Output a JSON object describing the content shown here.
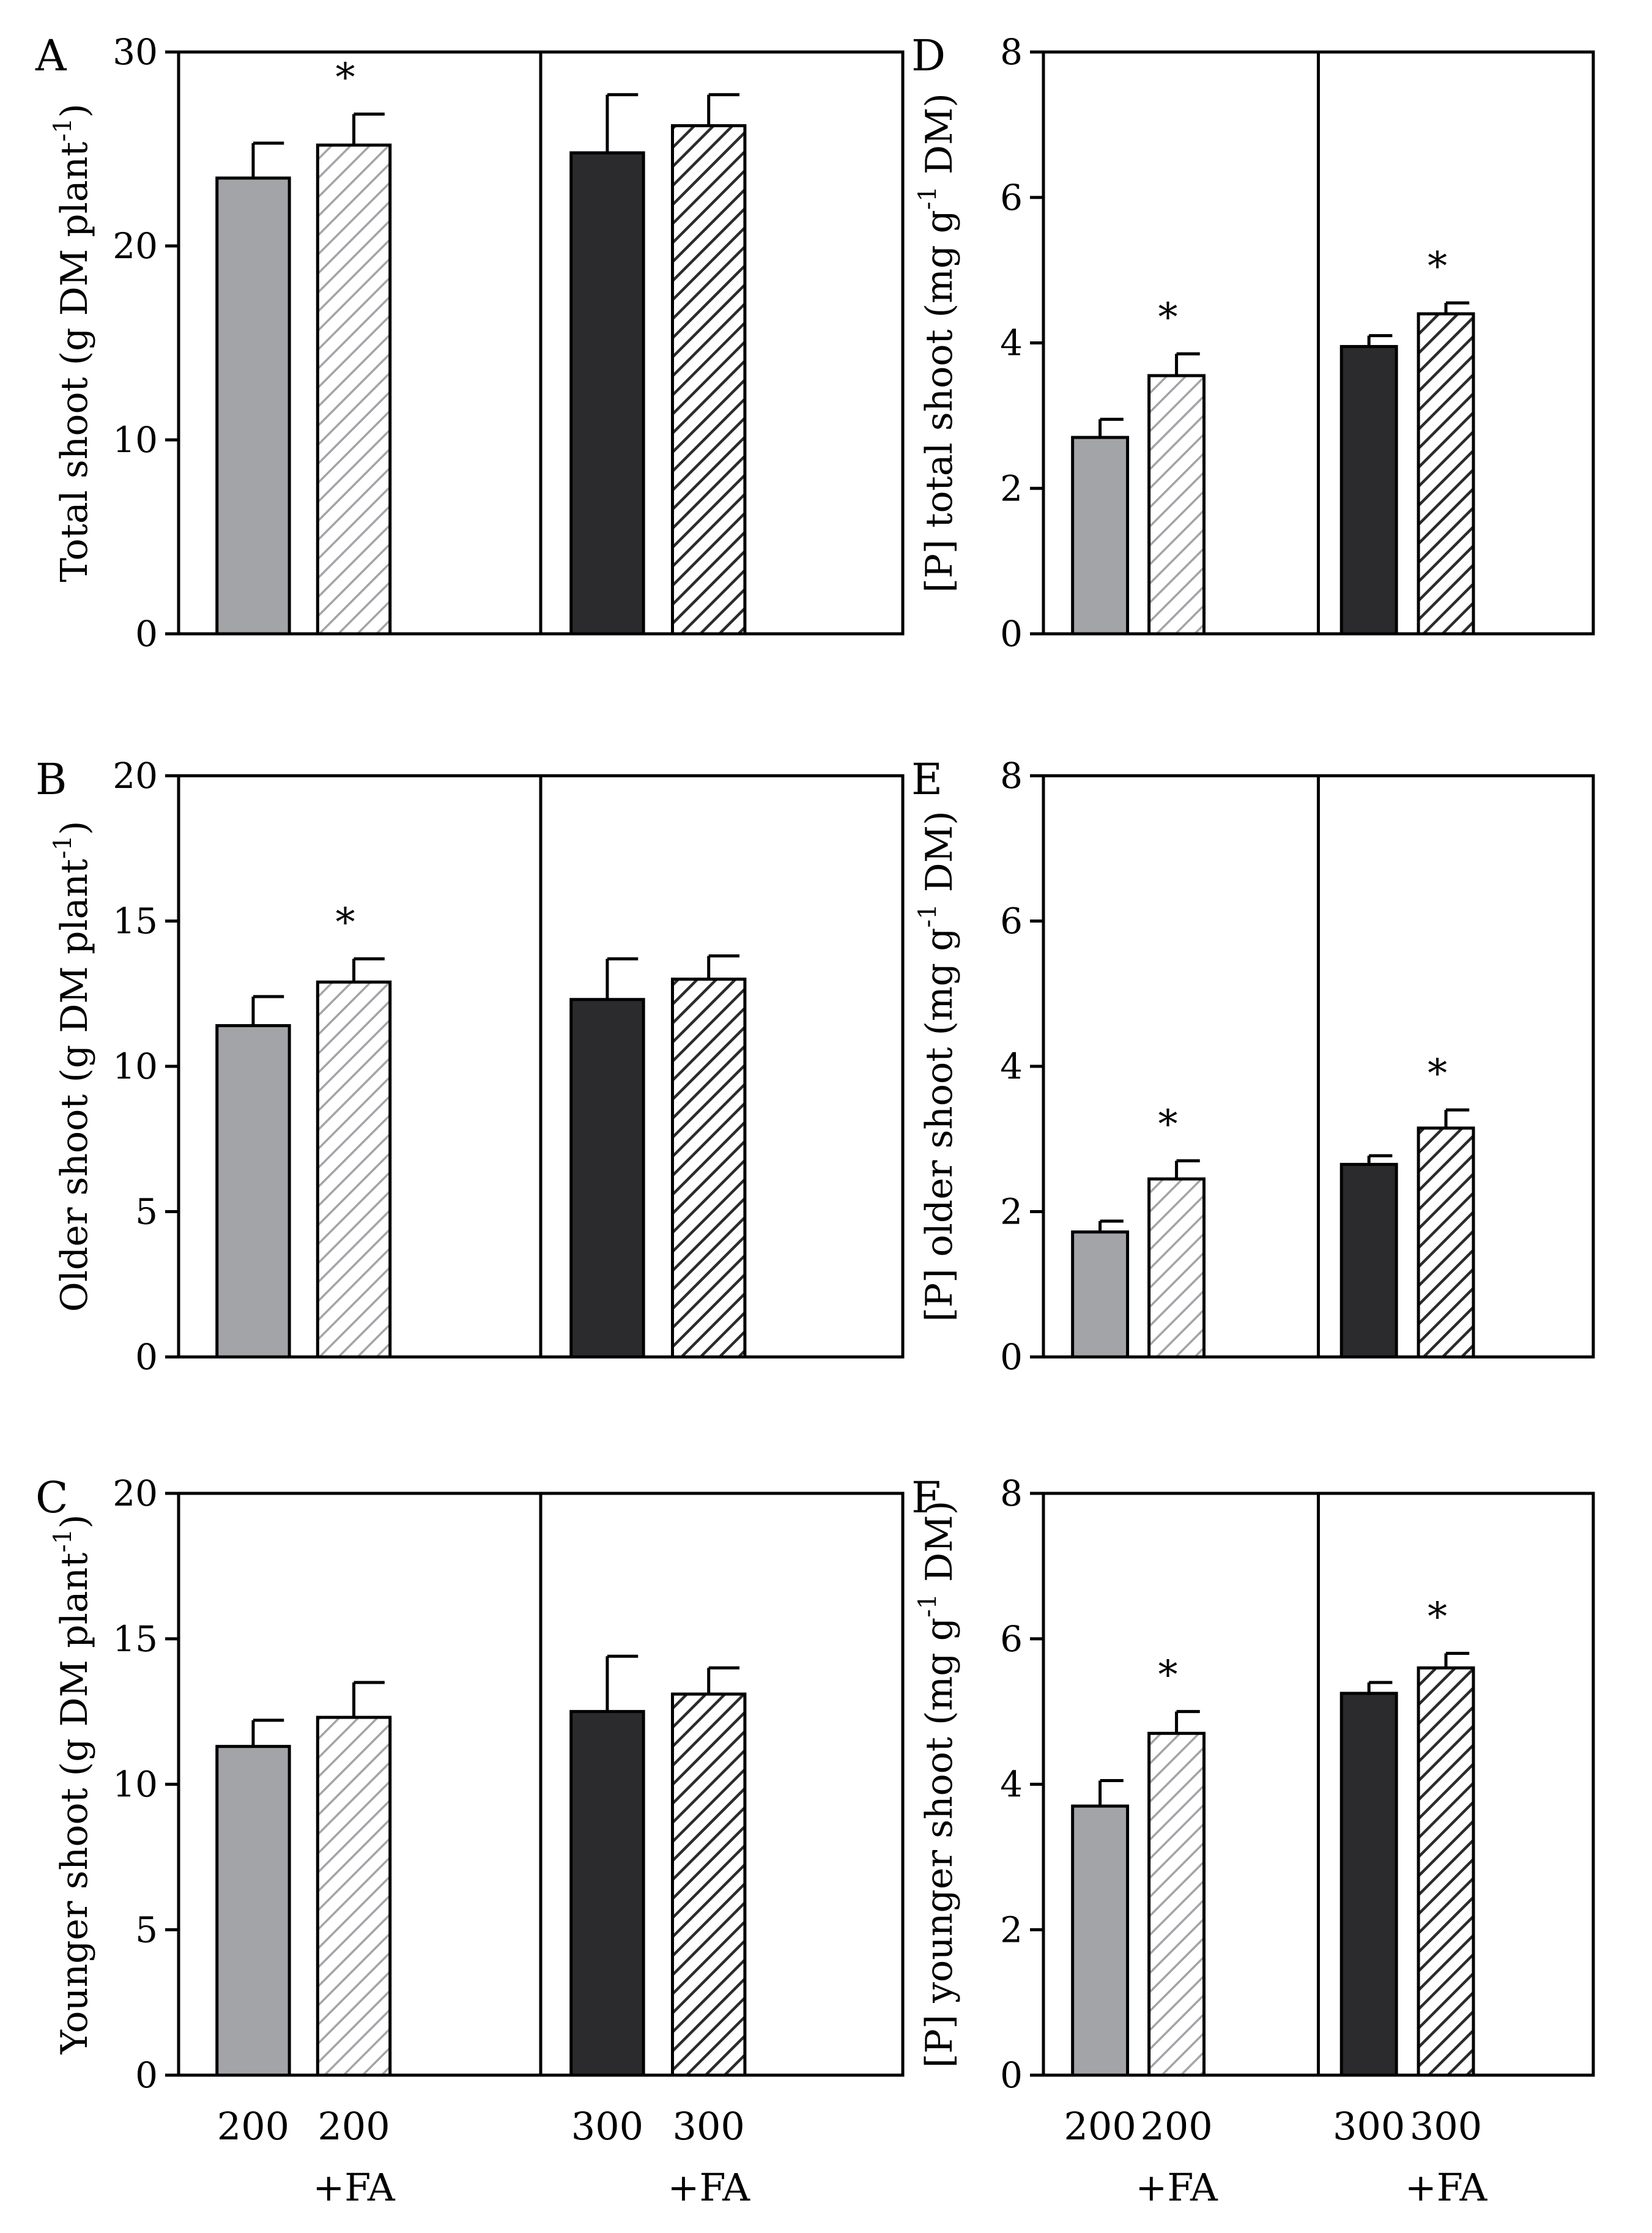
{
  "colors": {
    "c200": "#a3a4a8",
    "c300": "#2b2b2d",
    "hatch200": "#a3a4a8",
    "hatch300": "#2b2b2d"
  },
  "x_categories": [
    {
      "line1": "200",
      "line2": ""
    },
    {
      "line1": "200",
      "line2": "+FA"
    },
    {
      "line1": "300",
      "line2": ""
    },
    {
      "line1": "300",
      "line2": "+FA"
    }
  ],
  "chart_data": [
    {
      "panel": "A",
      "type": "bar",
      "ylabel_main": "Total shoot (g DM plant",
      "ylabel_sup": "-1",
      "ylabel_end": ")",
      "ylim": [
        0,
        30
      ],
      "yticks": [
        "0",
        "10",
        "20",
        "30"
      ],
      "values": [
        23.5,
        25.2,
        24.8,
        26.2
      ],
      "errors": [
        1.8,
        1.6,
        3.0,
        1.6
      ],
      "sig": [
        false,
        true,
        false,
        false
      ]
    },
    {
      "panel": "B",
      "type": "bar",
      "ylabel_main": "Older shoot (g DM plant",
      "ylabel_sup": "-1",
      "ylabel_end": ")",
      "ylim": [
        0,
        20
      ],
      "yticks": [
        "0",
        "5",
        "10",
        "15",
        "20"
      ],
      "values": [
        11.4,
        12.9,
        12.3,
        13.0
      ],
      "errors": [
        1.0,
        0.8,
        1.4,
        0.8
      ],
      "sig": [
        false,
        true,
        false,
        false
      ]
    },
    {
      "panel": "C",
      "type": "bar",
      "ylabel_main": "Younger shoot (g DM plant",
      "ylabel_sup": "-1",
      "ylabel_end": ")",
      "ylim": [
        0,
        20
      ],
      "yticks": [
        "0",
        "5",
        "10",
        "15",
        "20"
      ],
      "values": [
        11.3,
        12.3,
        12.5,
        13.1
      ],
      "errors": [
        0.9,
        1.2,
        1.9,
        0.9
      ],
      "sig": [
        false,
        false,
        false,
        false
      ]
    },
    {
      "panel": "D",
      "type": "bar",
      "ylabel_main": "[P] total shoot (mg g",
      "ylabel_sup": "-1",
      "ylabel_end": " DM)",
      "ylim": [
        0,
        8
      ],
      "yticks": [
        "0",
        "2",
        "4",
        "6",
        "8"
      ],
      "values": [
        2.7,
        3.55,
        3.95,
        4.4
      ],
      "errors": [
        0.25,
        0.3,
        0.15,
        0.15
      ],
      "sig": [
        false,
        true,
        false,
        true
      ]
    },
    {
      "panel": "E",
      "type": "bar",
      "ylabel_main": "[P] older shoot (mg g",
      "ylabel_sup": "-1",
      "ylabel_end": " DM)",
      "ylim": [
        0,
        8
      ],
      "yticks": [
        "0",
        "2",
        "4",
        "6",
        "8"
      ],
      "values": [
        1.72,
        2.45,
        2.65,
        3.15
      ],
      "errors": [
        0.15,
        0.25,
        0.12,
        0.25
      ],
      "sig": [
        false,
        true,
        false,
        true
      ]
    },
    {
      "panel": "F",
      "type": "bar",
      "ylabel_main": "[P] younger shoot (mg g",
      "ylabel_sup": "-1",
      "ylabel_end": " DM)",
      "ylim": [
        0,
        8
      ],
      "yticks": [
        "0",
        "2",
        "4",
        "6",
        "8"
      ],
      "values": [
        3.7,
        4.7,
        5.25,
        5.6
      ],
      "errors": [
        0.35,
        0.3,
        0.15,
        0.2
      ],
      "sig": [
        false,
        true,
        false,
        true
      ]
    }
  ],
  "sig_symbol": "*"
}
